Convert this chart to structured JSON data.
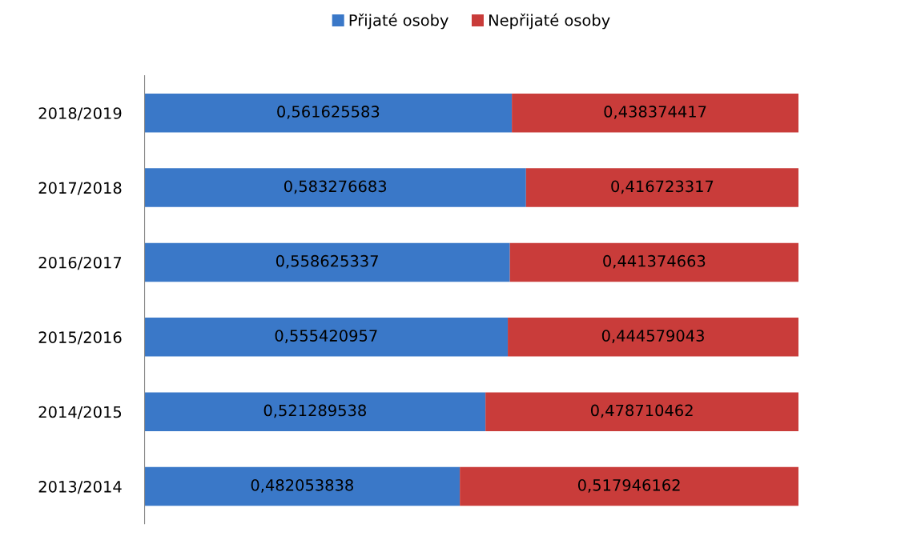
{
  "chart_data": {
    "type": "bar",
    "orientation": "horizontal",
    "stacked": true,
    "categories": [
      "2018/2019",
      "2017/2018",
      "2016/2017",
      "2015/2016",
      "2014/2015",
      "2013/2014"
    ],
    "series": [
      {
        "name": "Přijaté osoby",
        "color": "#3a78c8",
        "values": [
          0.561625583,
          0.583276683,
          0.558625337,
          0.555420957,
          0.521289538,
          0.482053838
        ],
        "value_labels": [
          "0,561625583",
          "0,583276683",
          "0,558625337",
          "0,555420957",
          "0,521289538",
          "0,482053838"
        ]
      },
      {
        "name": "Nepřijaté osoby",
        "color": "#c93c3a",
        "values": [
          0.438374417,
          0.416723317,
          0.441374663,
          0.444579043,
          0.478710462,
          0.517946162
        ],
        "value_labels": [
          "0,438374417",
          "0,416723317",
          "0,441374663",
          "0,444579043",
          "0,478710462",
          "0,517946162"
        ]
      }
    ],
    "xlim": [
      0,
      1
    ],
    "tick_labels": "y",
    "grid": false,
    "legend": "top"
  }
}
